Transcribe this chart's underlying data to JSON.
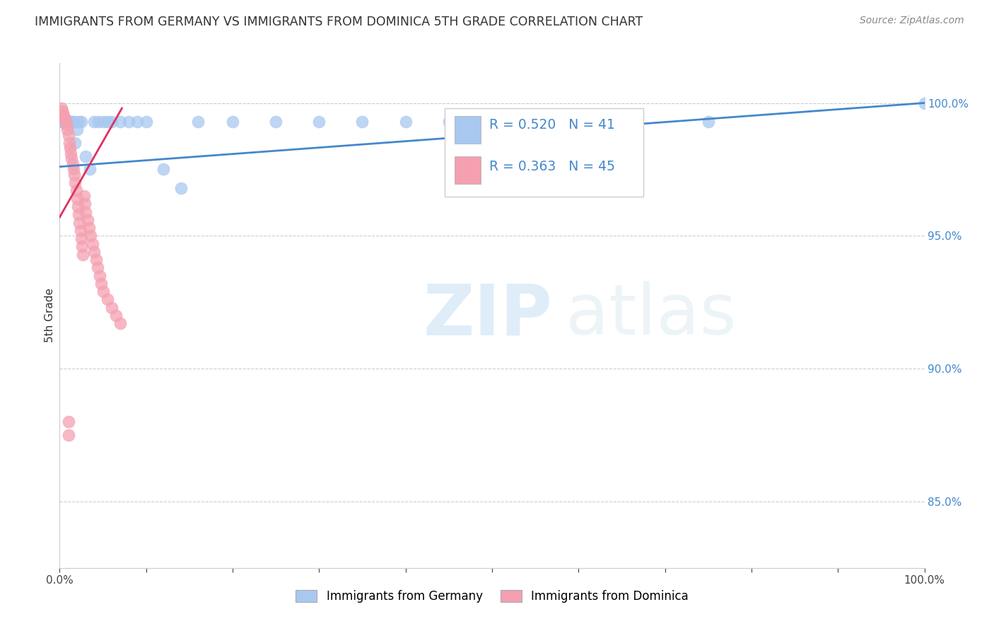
{
  "title": "IMMIGRANTS FROM GERMANY VS IMMIGRANTS FROM DOMINICA 5TH GRADE CORRELATION CHART",
  "source": "Source: ZipAtlas.com",
  "ylabel": "5th Grade",
  "ytick_labels": [
    "100.0%",
    "95.0%",
    "90.0%",
    "85.0%"
  ],
  "ytick_values": [
    1.0,
    0.95,
    0.9,
    0.85
  ],
  "xlim": [
    0.0,
    1.0
  ],
  "ylim": [
    0.825,
    1.015
  ],
  "germany_R": 0.52,
  "germany_N": 41,
  "dominica_R": 0.363,
  "dominica_N": 45,
  "germany_color": "#a8c8f0",
  "dominica_color": "#f4a0b0",
  "trendline_germany_color": "#4488cc",
  "trendline_dominica_color": "#e03060",
  "watermark_zip": "ZIP",
  "watermark_atlas": "atlas",
  "legend_label_germany": "Immigrants from Germany",
  "legend_label_dominica": "Immigrants from Dominica",
  "germany_scatter_x": [
    0.002,
    0.003,
    0.004,
    0.005,
    0.006,
    0.007,
    0.008,
    0.009,
    0.01,
    0.011,
    0.012,
    0.013,
    0.015,
    0.016,
    0.018,
    0.02,
    0.022,
    0.025,
    0.03,
    0.035,
    0.04,
    0.045,
    0.05,
    0.055,
    0.06,
    0.07,
    0.08,
    0.09,
    0.1,
    0.12,
    0.14,
    0.16,
    0.2,
    0.25,
    0.3,
    0.35,
    0.4,
    0.45,
    0.5,
    0.75,
    1.0
  ],
  "germany_scatter_y": [
    0.993,
    0.993,
    0.993,
    0.993,
    0.993,
    0.993,
    0.993,
    0.993,
    0.993,
    0.993,
    0.993,
    0.993,
    0.993,
    0.993,
    0.985,
    0.99,
    0.993,
    0.993,
    0.98,
    0.975,
    0.993,
    0.993,
    0.993,
    0.993,
    0.993,
    0.993,
    0.993,
    0.993,
    0.993,
    0.975,
    0.968,
    0.993,
    0.993,
    0.993,
    0.993,
    0.993,
    0.993,
    0.993,
    0.993,
    0.993,
    1.0
  ],
  "dominica_scatter_x": [
    0.002,
    0.003,
    0.004,
    0.005,
    0.006,
    0.007,
    0.008,
    0.009,
    0.01,
    0.011,
    0.012,
    0.013,
    0.014,
    0.015,
    0.016,
    0.017,
    0.018,
    0.019,
    0.02,
    0.021,
    0.022,
    0.023,
    0.024,
    0.025,
    0.026,
    0.027,
    0.028,
    0.029,
    0.03,
    0.032,
    0.034,
    0.036,
    0.038,
    0.04,
    0.042,
    0.044,
    0.046,
    0.048,
    0.05,
    0.055,
    0.06,
    0.065,
    0.07,
    0.01,
    0.01
  ],
  "dominica_scatter_y": [
    0.998,
    0.997,
    0.996,
    0.995,
    0.994,
    0.993,
    0.992,
    0.99,
    0.988,
    0.985,
    0.983,
    0.981,
    0.979,
    0.977,
    0.975,
    0.973,
    0.97,
    0.967,
    0.964,
    0.961,
    0.958,
    0.955,
    0.952,
    0.949,
    0.946,
    0.943,
    0.965,
    0.962,
    0.959,
    0.956,
    0.953,
    0.95,
    0.947,
    0.944,
    0.941,
    0.938,
    0.935,
    0.932,
    0.929,
    0.926,
    0.923,
    0.92,
    0.917,
    0.88,
    0.875
  ],
  "ger_trend_x": [
    0.0,
    1.0
  ],
  "ger_trend_y": [
    0.976,
    1.0
  ],
  "dom_trend_x": [
    0.0,
    0.072
  ],
  "dom_trend_y": [
    0.957,
    0.998
  ]
}
